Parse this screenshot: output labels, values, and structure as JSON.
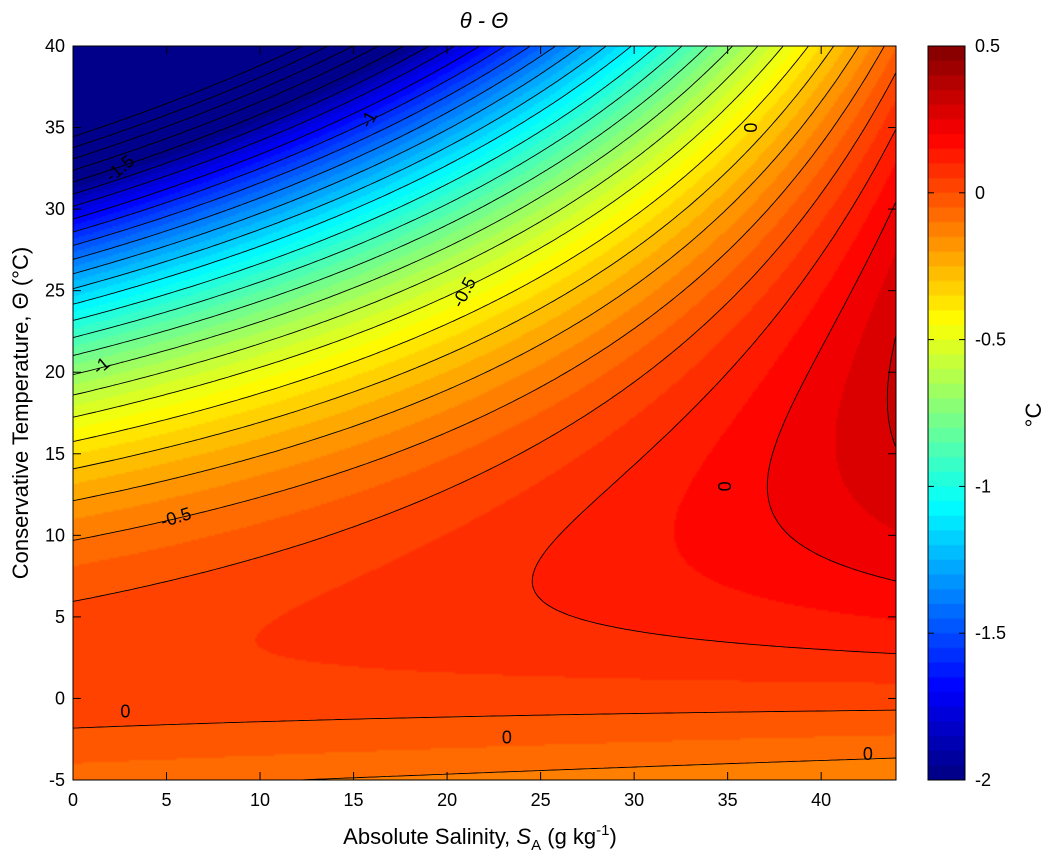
{
  "chart_data": {
    "type": "heatmap",
    "title": "θ - Θ",
    "xlabel": "Absolute Salinity, S_A (g kg^-1)",
    "xlabel_parts": {
      "prefix": "Absolute Salinity, ",
      "symbol": "S",
      "subscript": "A",
      "unit_pre": " (g kg",
      "superscript": "-1",
      "unit_post": ")"
    },
    "ylabel": "Conservative Temperature, Θ (°C)",
    "colorbar_label": "°C",
    "xlim": [
      0,
      44
    ],
    "ylim": [
      -5,
      40
    ],
    "clim": [
      -2,
      0.5
    ],
    "colormap": "jet",
    "x_ticks": [
      0,
      5,
      10,
      15,
      20,
      25,
      30,
      35,
      40
    ],
    "y_ticks": [
      -5,
      0,
      5,
      10,
      15,
      20,
      25,
      30,
      35,
      40
    ],
    "colorbar_ticks": [
      -2,
      -1.5,
      -1,
      -0.5,
      0,
      0.5
    ],
    "x_tick_labels": [
      "0",
      "5",
      "10",
      "15",
      "20",
      "25",
      "30",
      "35",
      "40"
    ],
    "y_tick_labels": [
      "-5",
      "0",
      "5",
      "10",
      "15",
      "20",
      "25",
      "30",
      "35",
      "40"
    ],
    "colorbar_tick_labels": [
      "-2",
      "-1.5",
      "-1",
      "-0.5",
      "0",
      "0.5"
    ],
    "contour_interval": 0.1,
    "contour_labels": [
      {
        "text": "-1.5",
        "x": 2.5,
        "y": 32.5,
        "angle": -40
      },
      {
        "text": "-1",
        "x": 15.8,
        "y": 35.5,
        "angle": -62
      },
      {
        "text": "-1",
        "x": 1.5,
        "y": 20.4,
        "angle": -40
      },
      {
        "text": "-0.5",
        "x": 20.9,
        "y": 24.9,
        "angle": -62
      },
      {
        "text": "-0.5",
        "x": 5.5,
        "y": 11.1,
        "angle": -17
      },
      {
        "text": "0",
        "x": 36.2,
        "y": 35,
        "angle": 90
      },
      {
        "text": "0",
        "x": 34.8,
        "y": 13,
        "angle": 90
      },
      {
        "text": "0",
        "x": 2.8,
        "y": -0.8,
        "angle": 0
      },
      {
        "text": "0",
        "x": 23.2,
        "y": -2.4,
        "angle": 0
      },
      {
        "text": "0",
        "x": 42.5,
        "y": -3.4,
        "angle": 0
      }
    ]
  }
}
